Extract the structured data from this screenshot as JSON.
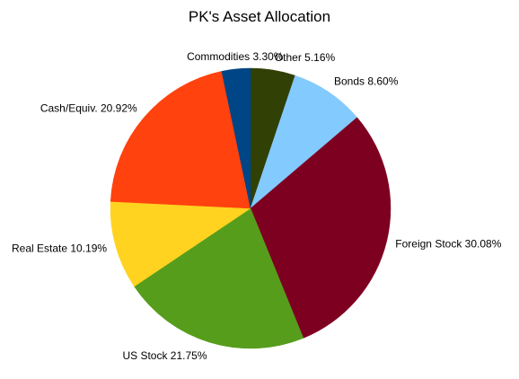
{
  "chart_data": {
    "type": "pie",
    "title": "PK's Asset Allocation",
    "legend": "none",
    "start_angle_deg": 0,
    "direction": "clockwise",
    "slices": [
      {
        "label": "Other",
        "value": 5.16,
        "display": "Other 5.16%",
        "color": "#314004"
      },
      {
        "label": "Bonds",
        "value": 8.6,
        "display": "Bonds 8.60%",
        "color": "#83caff"
      },
      {
        "label": "Foreign Stock",
        "value": 30.08,
        "display": "Foreign Stock 30.08%",
        "color": "#7e0021"
      },
      {
        "label": "US Stock",
        "value": 21.75,
        "display": "US Stock 21.75%",
        "color": "#579d1c"
      },
      {
        "label": "Real Estate",
        "value": 10.19,
        "display": "Real Estate 10.19%",
        "color": "#ffd320"
      },
      {
        "label": "Cash/Equiv.",
        "value": 20.92,
        "display": "Cash/Equiv. 20.92%",
        "color": "#ff420e"
      },
      {
        "label": "Commodities",
        "value": 3.3,
        "display": "Commodities 3.30%",
        "color": "#004586"
      }
    ]
  }
}
